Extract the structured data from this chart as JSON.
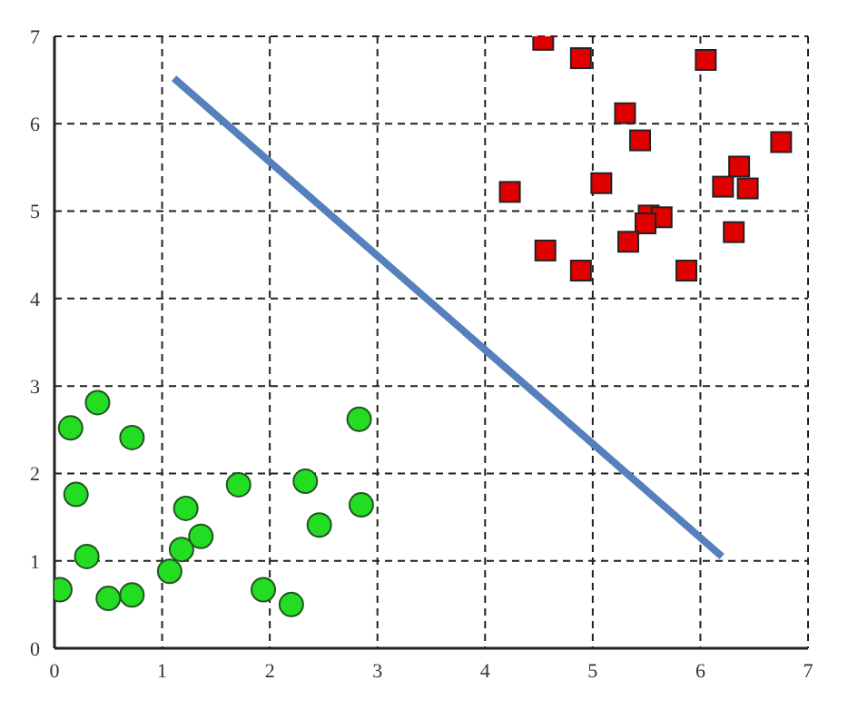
{
  "chart_data": {
    "type": "scatter",
    "xlim": [
      0,
      7
    ],
    "ylim": [
      0,
      7
    ],
    "xticks": [
      0,
      1,
      2,
      3,
      4,
      5,
      6,
      7
    ],
    "yticks": [
      0,
      1,
      2,
      3,
      4,
      5,
      6,
      7
    ],
    "grid": true,
    "series": [
      {
        "marker": "circle",
        "color": "#22dd22",
        "x": [
          0.05,
          0.15,
          0.2,
          0.4,
          0.3,
          0.5,
          0.72,
          0.72,
          1.07,
          1.18,
          1.22,
          1.36,
          1.71,
          1.94,
          2.2,
          2.33,
          2.46,
          2.83,
          2.85
        ],
        "values": [
          0.67,
          2.52,
          1.76,
          2.81,
          1.05,
          0.57,
          0.61,
          2.41,
          0.88,
          1.13,
          1.6,
          1.28,
          1.87,
          0.67,
          0.5,
          1.91,
          1.41,
          2.62,
          1.64
        ]
      },
      {
        "marker": "square",
        "color": "#e00000",
        "x": [
          4.54,
          4.89,
          6.05,
          5.3,
          5.44,
          6.75,
          6.36,
          4.23,
          5.08,
          6.21,
          6.44,
          5.52,
          5.64,
          5.49,
          5.33,
          6.31,
          4.56,
          4.89,
          5.87
        ],
        "values": [
          6.96,
          6.75,
          6.73,
          6.12,
          5.81,
          5.79,
          5.51,
          5.22,
          5.32,
          5.28,
          5.26,
          4.95,
          4.93,
          4.86,
          4.65,
          4.76,
          4.55,
          4.32,
          4.32
        ]
      },
      {
        "type": "line",
        "marker": "none",
        "line_style": "solid",
        "color": "#5580bb",
        "x": [
          1.11,
          6.2
        ],
        "values": [
          6.52,
          1.05
        ]
      }
    ]
  }
}
